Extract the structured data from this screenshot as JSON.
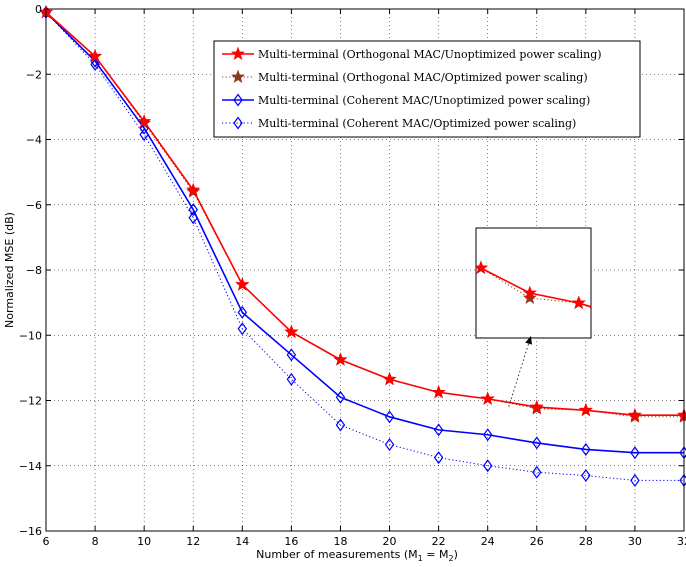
{
  "chart_data": {
    "type": "line",
    "xlabel": "Number of measurements (M",
    "xlabel_sub1": "1",
    "xlabel_mid": " = M",
    "xlabel_sub2": "2",
    "xlabel_end": ")",
    "ylabel": "Normalized MSE (dB)",
    "xlim": [
      6,
      32
    ],
    "ylim": [
      -16,
      0
    ],
    "xticks": [
      6,
      8,
      10,
      12,
      14,
      16,
      18,
      20,
      22,
      24,
      26,
      28,
      30,
      32
    ],
    "xtick_labels": [
      "6",
      "8",
      "10",
      "12",
      "14",
      "16",
      "18",
      "20",
      "22",
      "24",
      "26",
      "28",
      "30",
      "32"
    ],
    "yticks": [
      0,
      -2,
      -4,
      -6,
      -8,
      -10,
      -12,
      -14,
      -16
    ],
    "ytick_labels": [
      "0",
      "−2",
      "−4",
      "−6",
      "−8",
      "−10",
      "−12",
      "−14",
      "−16"
    ],
    "grid": true,
    "legend_position": "top-right",
    "x": [
      6,
      8,
      10,
      12,
      14,
      16,
      18,
      20,
      22,
      24,
      26,
      28,
      30,
      32
    ],
    "series": [
      {
        "name": "Multi-terminal (Orthogonal MAC/Unoptimized power scaling)",
        "values": [
          -0.1,
          -1.45,
          -3.45,
          -5.55,
          -8.45,
          -9.9,
          -10.75,
          -11.35,
          -11.75,
          -11.95,
          -12.2,
          -12.3,
          -12.45,
          -12.45
        ],
        "color": "#ff0000",
        "marker": "star-filled",
        "line": "solid"
      },
      {
        "name": "Multi-terminal (Orthogonal MAC/Optimized power scaling)",
        "values": [
          -0.1,
          -1.45,
          -3.5,
          -5.6,
          -8.45,
          -9.9,
          -10.75,
          -11.35,
          -11.75,
          -11.95,
          -12.25,
          -12.3,
          -12.5,
          -12.5
        ],
        "color": "#8b3a1a",
        "marker": "star-filled",
        "line": "dotted"
      },
      {
        "name": "Multi-terminal (Coherent MAC/Unoptimized power scaling)",
        "values": [
          -0.1,
          -1.6,
          -3.65,
          -6.15,
          -9.3,
          -10.6,
          -11.9,
          -12.5,
          -12.9,
          -13.05,
          -13.3,
          -13.5,
          -13.6,
          -13.6
        ],
        "color": "#0000ff",
        "marker": "diamond",
        "line": "solid"
      },
      {
        "name": "Multi-terminal (Coherent MAC/Optimized power scaling)",
        "values": [
          -0.1,
          -1.7,
          -3.85,
          -6.4,
          -9.8,
          -11.35,
          -12.75,
          -13.35,
          -13.75,
          -14.0,
          -14.2,
          -14.3,
          -14.45,
          -14.45
        ],
        "color": "#0000ff",
        "marker": "diamond",
        "line": "dotted"
      }
    ],
    "inset": {
      "x_range": [
        23.8,
        28.5
      ],
      "y_range": [
        -12.65,
        -11.55
      ],
      "shows_series": [
        0,
        1
      ],
      "points_to": [
        26,
        -12.25
      ]
    }
  }
}
